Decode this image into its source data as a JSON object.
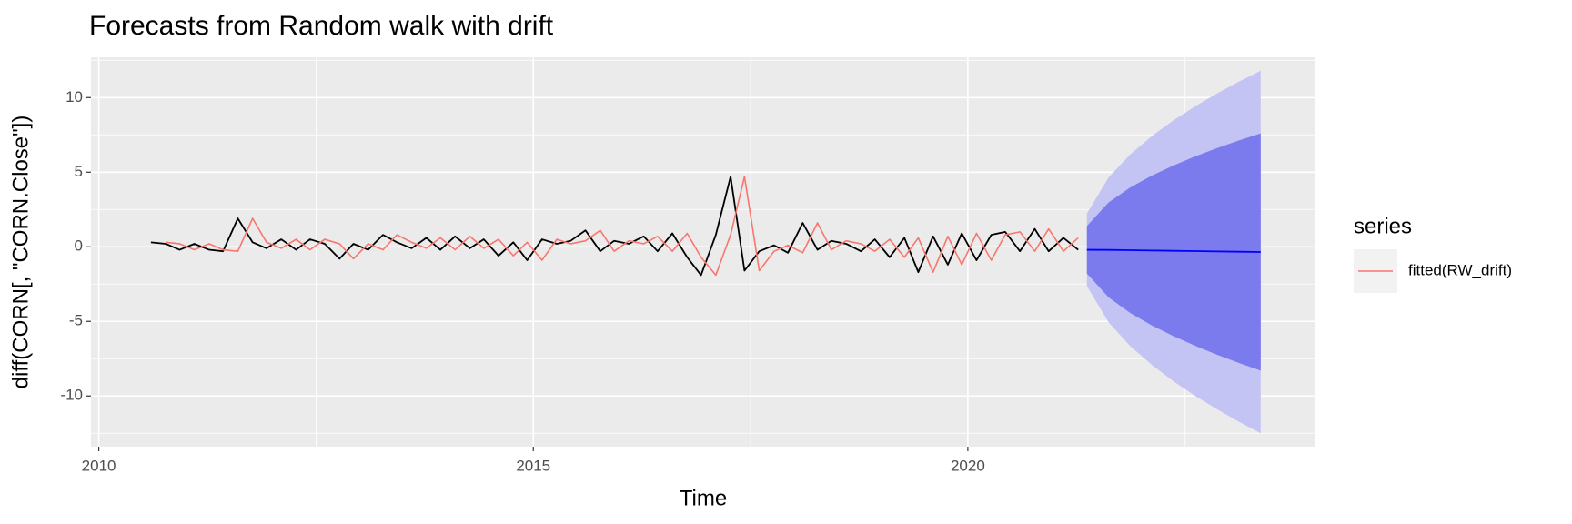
{
  "chart_data": {
    "type": "forecast",
    "title": "Forecasts from Random walk with drift",
    "x_label": "Time",
    "y_label": "diff(CORN[, \"CORN.Close\"])",
    "legend_title": "series",
    "xlim": [
      2009.91,
      2024.0
    ],
    "ylim": [
      -13.4,
      12.7
    ],
    "xticks": [
      2010,
      2015,
      2020
    ],
    "yticks": [
      -10,
      -5,
      0,
      5,
      10
    ],
    "xminor": [
      2012.5,
      2017.5,
      2022.5
    ],
    "yminor": [
      -12.5,
      -7.5,
      -2.5,
      2.5,
      7.5,
      12.5
    ],
    "grid": true,
    "x": [
      2010.6,
      2010.77,
      2010.93,
      2011.1,
      2011.27,
      2011.43,
      2011.6,
      2011.77,
      2011.93,
      2012.1,
      2012.27,
      2012.43,
      2012.6,
      2012.77,
      2012.93,
      2013.1,
      2013.27,
      2013.43,
      2013.6,
      2013.77,
      2013.93,
      2014.1,
      2014.27,
      2014.43,
      2014.6,
      2014.77,
      2014.93,
      2015.1,
      2015.27,
      2015.43,
      2015.6,
      2015.77,
      2015.93,
      2016.1,
      2016.27,
      2016.43,
      2016.6,
      2016.77,
      2016.93,
      2017.1,
      2017.27,
      2017.43,
      2017.6,
      2017.77,
      2017.93,
      2018.1,
      2018.27,
      2018.43,
      2018.6,
      2018.77,
      2018.93,
      2019.1,
      2019.27,
      2019.43,
      2019.6,
      2019.77,
      2019.93,
      2020.1,
      2020.27,
      2020.43,
      2020.6,
      2020.77,
      2020.93,
      2021.1,
      2021.27
    ],
    "actual": {
      "color": "#000000",
      "values": [
        0.3,
        0.2,
        -0.2,
        0.2,
        -0.2,
        -0.3,
        1.9,
        0.3,
        -0.1,
        0.5,
        -0.2,
        0.5,
        0.2,
        -0.8,
        0.2,
        -0.2,
        0.8,
        0.3,
        -0.1,
        0.6,
        -0.2,
        0.7,
        -0.1,
        0.5,
        -0.6,
        0.3,
        -0.9,
        0.5,
        0.2,
        0.4,
        1.1,
        -0.3,
        0.4,
        0.2,
        0.7,
        -0.3,
        0.9,
        -0.7,
        -1.9,
        0.8,
        4.7,
        -1.6,
        -0.3,
        0.1,
        -0.4,
        1.6,
        -0.2,
        0.4,
        0.2,
        -0.3,
        0.5,
        -0.7,
        0.6,
        -1.7,
        0.7,
        -1.2,
        0.9,
        -0.9,
        0.8,
        1.0,
        -0.3,
        1.2,
        -0.3,
        0.6,
        -0.2
      ]
    },
    "series": [
      {
        "name": "fitted(RW_drift)",
        "color": "#F8766D",
        "values": [
          null,
          0.3,
          0.2,
          -0.2,
          0.2,
          -0.2,
          -0.3,
          1.9,
          0.3,
          -0.1,
          0.5,
          -0.2,
          0.5,
          0.2,
          -0.8,
          0.2,
          -0.2,
          0.8,
          0.3,
          -0.1,
          0.6,
          -0.2,
          0.7,
          -0.1,
          0.5,
          -0.6,
          0.3,
          -0.9,
          0.5,
          0.2,
          0.4,
          1.1,
          -0.3,
          0.4,
          0.2,
          0.7,
          -0.3,
          0.9,
          -0.7,
          -1.9,
          0.8,
          4.7,
          -1.6,
          -0.3,
          0.1,
          -0.4,
          1.6,
          -0.2,
          0.4,
          0.2,
          -0.3,
          0.5,
          -0.7,
          0.6,
          -1.7,
          0.7,
          -1.2,
          0.9,
          -0.9,
          0.8,
          1.0,
          -0.3,
          1.2,
          -0.3,
          0.6
        ]
      }
    ],
    "forecast": {
      "x": [
        2021.37,
        2021.62,
        2021.87,
        2022.12,
        2022.37,
        2022.62,
        2022.87,
        2023.12,
        2023.37
      ],
      "mean": [
        -0.2,
        -0.21,
        -0.23,
        -0.25,
        -0.27,
        -0.29,
        -0.31,
        -0.33,
        -0.35
      ],
      "lo80": [
        -1.79,
        -3.39,
        -4.44,
        -5.28,
        -6.0,
        -6.65,
        -7.24,
        -7.79,
        -8.3
      ],
      "hi80": [
        1.39,
        2.97,
        3.98,
        4.78,
        5.46,
        6.07,
        6.62,
        7.13,
        7.6
      ],
      "lo95": [
        -2.63,
        -5.07,
        -6.66,
        -7.93,
        -9.03,
        -10.01,
        -10.9,
        -11.73,
        -12.5
      ],
      "hi95": [
        2.23,
        4.65,
        6.2,
        7.43,
        8.49,
        9.43,
        10.28,
        11.07,
        11.8
      ],
      "mean_color": "#0000FF",
      "band80_color": "#7B7BEE",
      "band95_color": "#C4C4F4"
    }
  }
}
